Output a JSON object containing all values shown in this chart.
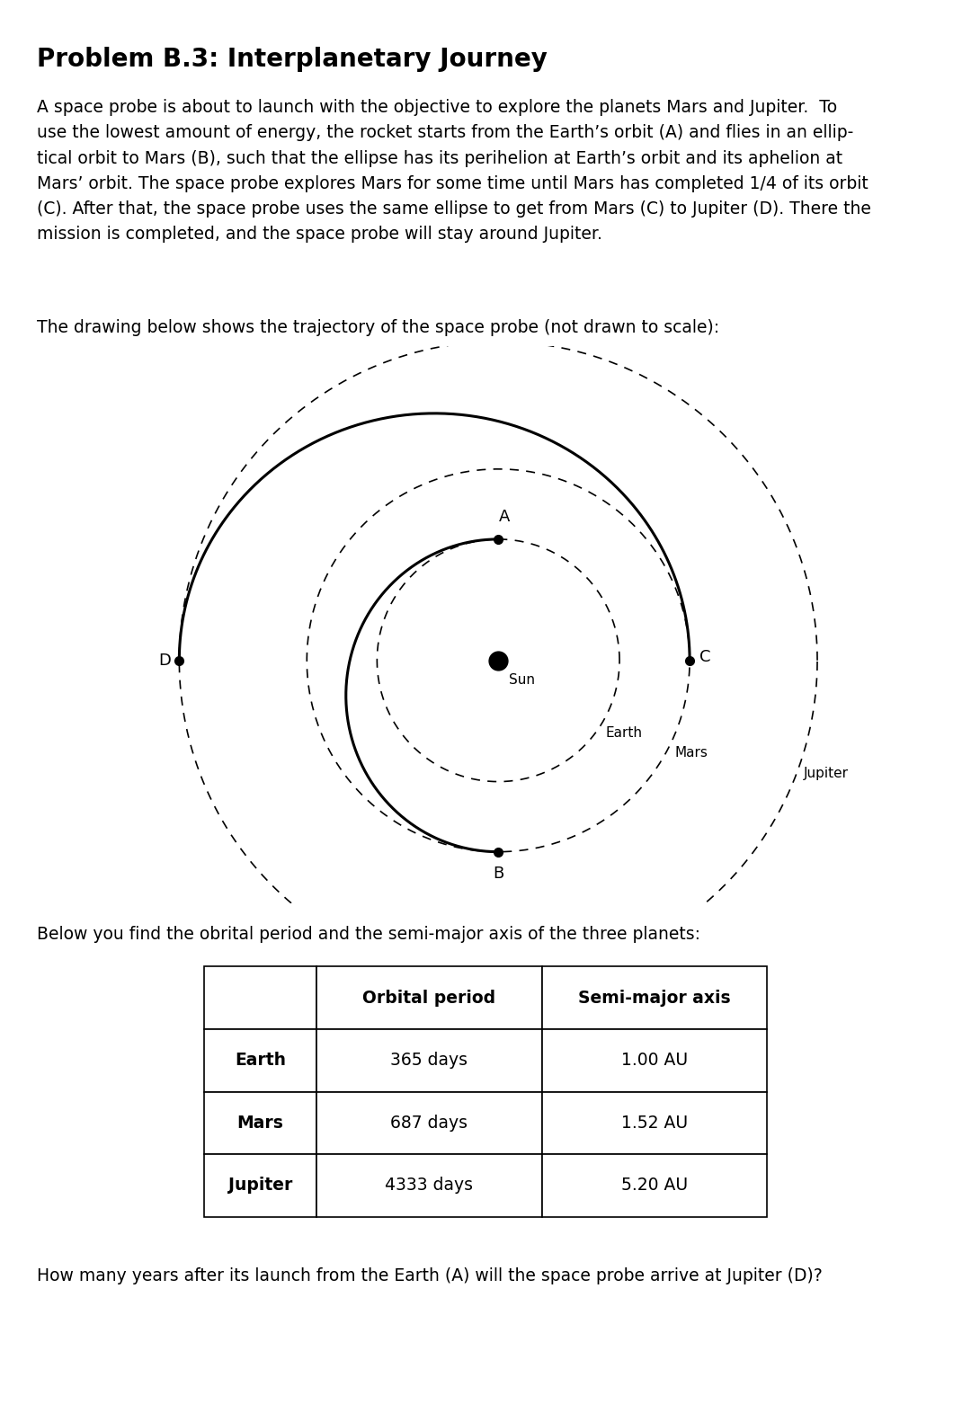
{
  "title": "Problem B.3: Interplanetary Journey",
  "body_lines": [
    "A space probe is about to launch with the objective to explore the planets Mars and Jupiter.  To",
    "use the lowest amount of energy, the rocket starts from the Earth’s orbit (A) and flies in an ellip-",
    "tical orbit to Mars (B), such that the ellipse has its perihelion at Earth’s orbit and its aphelion at",
    "Mars’ orbit. The space probe explores Mars for some time until Mars has completed 1/4 of its orbit",
    "(C). After that, the space probe uses the same ellipse to get from Mars (C) to Jupiter (D). There the",
    "mission is completed, and the space probe will stay around Jupiter."
  ],
  "drawing_intro": "The drawing below shows the trajectory of the space probe (not drawn to scale):",
  "table_intro": "Below you find the obrital period and the semi-major axis of the three planets:",
  "question": "How many years after its launch from the Earth (A) will the space probe arrive at Jupiter (D)?",
  "table_headers": [
    "",
    "Orbital period",
    "Semi-major axis"
  ],
  "table_rows": [
    [
      "Earth",
      "365 days",
      "1.00 AU"
    ],
    [
      "Mars",
      "687 days",
      "1.52 AU"
    ],
    [
      "Jupiter",
      "4333 days",
      "5.20 AU"
    ]
  ],
  "bg_color": "#ffffff",
  "r_earth": 0.19,
  "r_mars": 0.3,
  "r_jupiter": 0.5
}
